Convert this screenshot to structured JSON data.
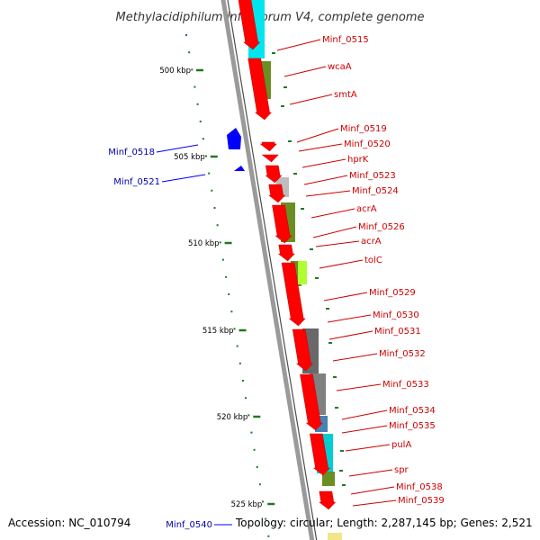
{
  "title": "Methylacidiphilum infernorum V4, complete genome",
  "accession": "Accession: NC_010794",
  "topology": "Topology: circular; Length: 2,287,145 bp; Genes: 2,521",
  "colors": {
    "forward_gene": "#ff0000",
    "reverse_gene": "#0000ff",
    "label_forward": "#cc0000",
    "label_reverse": "#0000aa",
    "backbone": "#9a9a9a",
    "dot": "#1f7a1f"
  },
  "scale_ticks": [
    "500 kbp",
    "505 kbp",
    "510 kbp",
    "515 kbp",
    "520 kbp",
    "525 kbp"
  ],
  "forward_labels": [
    "Minf_0515",
    "wcaA",
    "smtA",
    "Minf_0519",
    "Minf_0520",
    "hprK",
    "Minf_0523",
    "Minf_0524",
    "acrA",
    "Minf_0526",
    "acrA",
    "tolC",
    "Minf_0529",
    "Minf_0530",
    "Minf_0531",
    "Minf_0532",
    "Minf_0533",
    "Minf_0534",
    "Minf_0535",
    "pulA",
    "spr",
    "Minf_0538",
    "Minf_0539"
  ],
  "reverse_labels": [
    "Minf_0518",
    "Minf_0521",
    "Minf_0540"
  ]
}
